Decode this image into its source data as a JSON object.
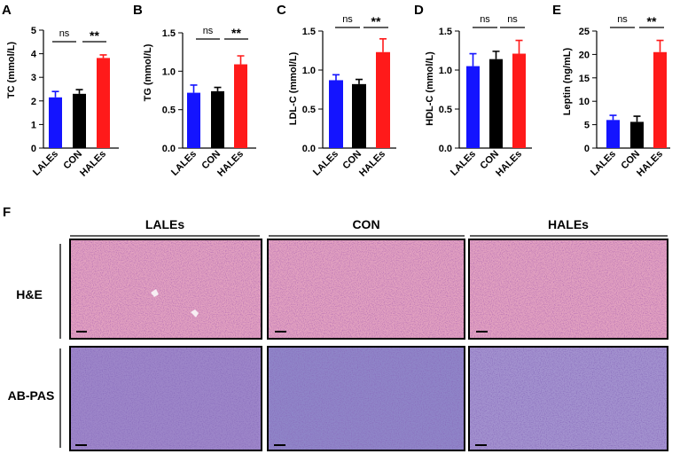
{
  "chart_data": [
    {
      "panel": "A",
      "type": "bar",
      "ylabel": "TC (mmol/L)",
      "ylim": [
        0,
        5
      ],
      "yticks": [
        0,
        1,
        2,
        3,
        4,
        5
      ],
      "categories": [
        "LALEs",
        "CON",
        "HALEs"
      ],
      "values": [
        2.15,
        2.3,
        3.82
      ],
      "errors": [
        0.25,
        0.18,
        0.13
      ],
      "colors": [
        "#1414ff",
        "#000000",
        "#ff1a1a"
      ],
      "significance": [
        {
          "from": 0,
          "to": 1,
          "label": "ns"
        },
        {
          "from": 1,
          "to": 2,
          "label": "**"
        }
      ]
    },
    {
      "panel": "B",
      "type": "bar",
      "ylabel": "TG (mmol/L)",
      "ylim": [
        0,
        1.5
      ],
      "yticks": [
        0.0,
        0.5,
        1.0,
        1.5
      ],
      "categories": [
        "LALEs",
        "CON",
        "HALEs"
      ],
      "values": [
        0.72,
        0.74,
        1.09
      ],
      "errors": [
        0.1,
        0.05,
        0.11
      ],
      "colors": [
        "#1414ff",
        "#000000",
        "#ff1a1a"
      ],
      "significance": [
        {
          "from": 0,
          "to": 1,
          "label": "ns"
        },
        {
          "from": 1,
          "to": 2,
          "label": "**"
        }
      ]
    },
    {
      "panel": "C",
      "type": "bar",
      "ylabel": "LDL-C (mmol/L)",
      "ylim": [
        0,
        1.5
      ],
      "yticks": [
        0.0,
        0.5,
        1.0,
        1.5
      ],
      "categories": [
        "LALEs",
        "CON",
        "HALEs"
      ],
      "values": [
        0.87,
        0.82,
        1.23
      ],
      "errors": [
        0.07,
        0.06,
        0.17
      ],
      "colors": [
        "#1414ff",
        "#000000",
        "#ff1a1a"
      ],
      "significance": [
        {
          "from": 0,
          "to": 1,
          "label": "ns"
        },
        {
          "from": 1,
          "to": 2,
          "label": "**"
        }
      ]
    },
    {
      "panel": "D",
      "type": "bar",
      "ylabel": "HDL-C (mmol/L)",
      "ylim": [
        0,
        1.5
      ],
      "yticks": [
        0.0,
        0.5,
        1.0,
        1.5
      ],
      "categories": [
        "LALEs",
        "CON",
        "HALEs"
      ],
      "values": [
        1.05,
        1.14,
        1.21
      ],
      "errors": [
        0.16,
        0.1,
        0.17
      ],
      "colors": [
        "#1414ff",
        "#000000",
        "#ff1a1a"
      ],
      "significance": [
        {
          "from": 0,
          "to": 1,
          "label": "ns"
        },
        {
          "from": 1,
          "to": 2,
          "label": "ns"
        }
      ]
    },
    {
      "panel": "E",
      "type": "bar",
      "ylabel": "Leptin (ng/mL)",
      "ylim": [
        0,
        25
      ],
      "yticks": [
        0,
        5,
        10,
        15,
        20,
        25
      ],
      "categories": [
        "LALEs",
        "CON",
        "HALEs"
      ],
      "values": [
        6.0,
        5.6,
        20.5
      ],
      "errors": [
        1.0,
        1.2,
        2.5
      ],
      "colors": [
        "#1414ff",
        "#000000",
        "#ff1a1a"
      ],
      "significance": [
        {
          "from": 0,
          "to": 1,
          "label": "ns"
        },
        {
          "from": 1,
          "to": 2,
          "label": "**"
        }
      ]
    }
  ],
  "histology": {
    "panel": "F",
    "columns": [
      "LALEs",
      "CON",
      "HALEs"
    ],
    "rows": [
      "H&E",
      "AB-PAS"
    ],
    "stain_colors": {
      "he_background": "#e2a1c0",
      "he_nuclei": "#7c3a8c",
      "pas_background": "#9d86c9",
      "pas_nuclei": "#46307e"
    }
  }
}
